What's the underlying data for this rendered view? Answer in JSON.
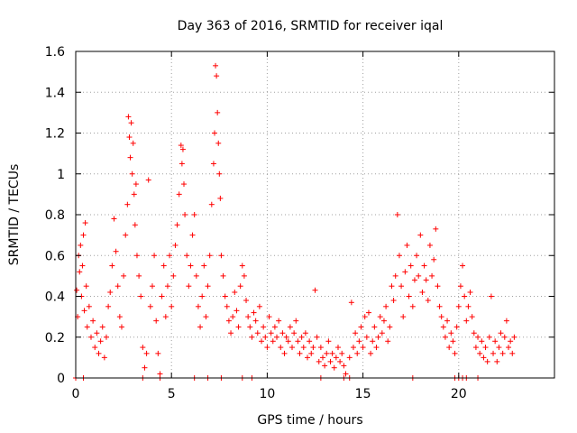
{
  "chart_data": {
    "type": "scatter",
    "title": "Day 363 of 2016, SRMTID for receiver iqal",
    "xlabel": "GPS time / hours",
    "ylabel": "SRMTID / TECUs",
    "xlim": [
      0,
      25
    ],
    "ylim": [
      0,
      1.6
    ],
    "x_ticks": [
      0,
      5,
      10,
      15,
      20
    ],
    "x_tick_labels": [
      "0",
      "5",
      "10",
      "15",
      "20"
    ],
    "y_ticks": [
      0,
      0.2,
      0.4,
      0.6,
      0.8,
      1.0,
      1.2,
      1.4,
      1.6
    ],
    "y_tick_labels": [
      "0",
      "0.2",
      "0.4",
      "0.6",
      "0.8",
      "1",
      "1.2",
      "1.4",
      "1.6"
    ],
    "grid": true,
    "marker": "+",
    "series": [
      {
        "name": "SRMTID",
        "color": "#ff0000",
        "points": [
          [
            0.05,
            0.43
          ],
          [
            0.1,
            0.3
          ],
          [
            0.15,
            0.6
          ],
          [
            0.2,
            0.52
          ],
          [
            0.25,
            0.65
          ],
          [
            0.3,
            0.4
          ],
          [
            0.35,
            0.55
          ],
          [
            0.4,
            0.7
          ],
          [
            0.45,
            0.33
          ],
          [
            0.5,
            0.76
          ],
          [
            0.55,
            0.45
          ],
          [
            0.6,
            0.25
          ],
          [
            0.7,
            0.35
          ],
          [
            0.8,
            0.2
          ],
          [
            0.9,
            0.28
          ],
          [
            1.0,
            0.15
          ],
          [
            1.1,
            0.22
          ],
          [
            1.2,
            0.12
          ],
          [
            1.3,
            0.18
          ],
          [
            1.4,
            0.25
          ],
          [
            1.5,
            0.1
          ],
          [
            1.6,
            0.2
          ],
          [
            1.7,
            0.35
          ],
          [
            1.8,
            0.42
          ],
          [
            1.9,
            0.55
          ],
          [
            2.0,
            0.78
          ],
          [
            2.1,
            0.62
          ],
          [
            2.2,
            0.45
          ],
          [
            2.3,
            0.3
          ],
          [
            2.4,
            0.25
          ],
          [
            2.5,
            0.5
          ],
          [
            2.6,
            0.7
          ],
          [
            2.7,
            0.85
          ],
          [
            2.75,
            1.28
          ],
          [
            2.8,
            1.18
          ],
          [
            2.85,
            1.08
          ],
          [
            2.9,
            1.25
          ],
          [
            2.95,
            1.0
          ],
          [
            3.0,
            1.15
          ],
          [
            3.05,
            0.9
          ],
          [
            3.1,
            0.75
          ],
          [
            3.15,
            0.95
          ],
          [
            3.2,
            0.6
          ],
          [
            3.3,
            0.5
          ],
          [
            3.4,
            0.4
          ],
          [
            3.5,
            0.15
          ],
          [
            3.6,
            0.05
          ],
          [
            3.7,
            0.12
          ],
          [
            3.8,
            0.97
          ],
          [
            3.9,
            0.35
          ],
          [
            4.0,
            0.45
          ],
          [
            4.1,
            0.6
          ],
          [
            4.2,
            0.28
          ],
          [
            4.3,
            0.12
          ],
          [
            4.4,
            0.02
          ],
          [
            4.5,
            0.4
          ],
          [
            4.6,
            0.55
          ],
          [
            4.7,
            0.3
          ],
          [
            4.8,
            0.45
          ],
          [
            4.9,
            0.6
          ],
          [
            5.0,
            0.35
          ],
          [
            5.1,
            0.5
          ],
          [
            5.2,
            0.65
          ],
          [
            5.3,
            0.75
          ],
          [
            5.4,
            0.9
          ],
          [
            5.5,
            1.14
          ],
          [
            5.55,
            1.05
          ],
          [
            5.6,
            1.12
          ],
          [
            5.65,
            0.95
          ],
          [
            5.7,
            0.8
          ],
          [
            5.8,
            0.6
          ],
          [
            5.9,
            0.45
          ],
          [
            6.0,
            0.55
          ],
          [
            6.1,
            0.7
          ],
          [
            6.2,
            0.8
          ],
          [
            6.3,
            0.5
          ],
          [
            6.4,
            0.35
          ],
          [
            6.5,
            0.25
          ],
          [
            6.6,
            0.4
          ],
          [
            6.7,
            0.55
          ],
          [
            6.8,
            0.3
          ],
          [
            6.9,
            0.45
          ],
          [
            7.0,
            0.6
          ],
          [
            7.1,
            0.85
          ],
          [
            7.2,
            1.05
          ],
          [
            7.25,
            1.2
          ],
          [
            7.3,
            1.53
          ],
          [
            7.35,
            1.48
          ],
          [
            7.4,
            1.3
          ],
          [
            7.45,
            1.15
          ],
          [
            7.5,
            1.0
          ],
          [
            7.55,
            0.88
          ],
          [
            7.6,
            0.6
          ],
          [
            7.7,
            0.5
          ],
          [
            7.8,
            0.4
          ],
          [
            7.9,
            0.35
          ],
          [
            8.0,
            0.28
          ],
          [
            8.1,
            0.22
          ],
          [
            8.2,
            0.3
          ],
          [
            8.3,
            0.42
          ],
          [
            8.4,
            0.33
          ],
          [
            8.5,
            0.25
          ],
          [
            8.6,
            0.45
          ],
          [
            8.7,
            0.55
          ],
          [
            8.8,
            0.5
          ],
          [
            8.9,
            0.38
          ],
          [
            9.0,
            0.3
          ],
          [
            9.1,
            0.25
          ],
          [
            9.2,
            0.2
          ],
          [
            9.3,
            0.32
          ],
          [
            9.4,
            0.28
          ],
          [
            9.5,
            0.22
          ],
          [
            9.6,
            0.35
          ],
          [
            9.7,
            0.18
          ],
          [
            9.8,
            0.25
          ],
          [
            9.9,
            0.2
          ],
          [
            10.0,
            0.15
          ],
          [
            10.1,
            0.3
          ],
          [
            10.2,
            0.22
          ],
          [
            10.3,
            0.18
          ],
          [
            10.4,
            0.25
          ],
          [
            10.5,
            0.2
          ],
          [
            10.6,
            0.28
          ],
          [
            10.7,
            0.15
          ],
          [
            10.8,
            0.22
          ],
          [
            10.9,
            0.12
          ],
          [
            11.0,
            0.2
          ],
          [
            11.1,
            0.18
          ],
          [
            11.2,
            0.25
          ],
          [
            11.3,
            0.15
          ],
          [
            11.4,
            0.22
          ],
          [
            11.5,
            0.28
          ],
          [
            11.6,
            0.18
          ],
          [
            11.7,
            0.12
          ],
          [
            11.8,
            0.2
          ],
          [
            11.9,
            0.15
          ],
          [
            12.0,
            0.22
          ],
          [
            12.1,
            0.1
          ],
          [
            12.2,
            0.18
          ],
          [
            12.3,
            0.12
          ],
          [
            12.4,
            0.15
          ],
          [
            12.5,
            0.43
          ],
          [
            12.6,
            0.2
          ],
          [
            12.7,
            0.08
          ],
          [
            12.8,
            0.15
          ],
          [
            12.9,
            0.1
          ],
          [
            13.0,
            0.06
          ],
          [
            13.1,
            0.12
          ],
          [
            13.2,
            0.18
          ],
          [
            13.3,
            0.08
          ],
          [
            13.4,
            0.12
          ],
          [
            13.5,
            0.05
          ],
          [
            13.6,
            0.1
          ],
          [
            13.7,
            0.15
          ],
          [
            13.8,
            0.08
          ],
          [
            13.9,
            0.12
          ],
          [
            14.0,
            0.06
          ],
          [
            14.1,
            0.02
          ],
          [
            14.3,
            0.1
          ],
          [
            14.4,
            0.37
          ],
          [
            14.5,
            0.15
          ],
          [
            14.6,
            0.22
          ],
          [
            14.7,
            0.12
          ],
          [
            14.8,
            0.18
          ],
          [
            14.9,
            0.25
          ],
          [
            15.0,
            0.15
          ],
          [
            15.1,
            0.3
          ],
          [
            15.2,
            0.2
          ],
          [
            15.3,
            0.32
          ],
          [
            15.4,
            0.12
          ],
          [
            15.5,
            0.18
          ],
          [
            15.6,
            0.25
          ],
          [
            15.7,
            0.15
          ],
          [
            15.8,
            0.2
          ],
          [
            15.9,
            0.3
          ],
          [
            16.0,
            0.22
          ],
          [
            16.1,
            0.28
          ],
          [
            16.2,
            0.35
          ],
          [
            16.3,
            0.18
          ],
          [
            16.4,
            0.25
          ],
          [
            16.5,
            0.45
          ],
          [
            16.6,
            0.38
          ],
          [
            16.7,
            0.5
          ],
          [
            16.8,
            0.8
          ],
          [
            16.9,
            0.6
          ],
          [
            17.0,
            0.45
          ],
          [
            17.1,
            0.3
          ],
          [
            17.2,
            0.52
          ],
          [
            17.3,
            0.65
          ],
          [
            17.4,
            0.4
          ],
          [
            17.5,
            0.55
          ],
          [
            17.6,
            0.35
          ],
          [
            17.7,
            0.48
          ],
          [
            17.8,
            0.6
          ],
          [
            17.9,
            0.5
          ],
          [
            18.0,
            0.7
          ],
          [
            18.1,
            0.42
          ],
          [
            18.2,
            0.55
          ],
          [
            18.3,
            0.48
          ],
          [
            18.4,
            0.38
          ],
          [
            18.5,
            0.65
          ],
          [
            18.6,
            0.5
          ],
          [
            18.7,
            0.58
          ],
          [
            18.8,
            0.73
          ],
          [
            18.9,
            0.45
          ],
          [
            19.0,
            0.35
          ],
          [
            19.1,
            0.3
          ],
          [
            19.2,
            0.25
          ],
          [
            19.3,
            0.2
          ],
          [
            19.4,
            0.28
          ],
          [
            19.5,
            0.15
          ],
          [
            19.6,
            0.22
          ],
          [
            19.7,
            0.18
          ],
          [
            19.8,
            0.12
          ],
          [
            19.9,
            0.25
          ],
          [
            20.0,
            0.35
          ],
          [
            20.1,
            0.45
          ],
          [
            20.2,
            0.55
          ],
          [
            20.3,
            0.4
          ],
          [
            20.4,
            0.28
          ],
          [
            20.5,
            0.35
          ],
          [
            20.6,
            0.42
          ],
          [
            20.7,
            0.3
          ],
          [
            20.8,
            0.22
          ],
          [
            20.9,
            0.15
          ],
          [
            21.0,
            0.2
          ],
          [
            21.1,
            0.12
          ],
          [
            21.2,
            0.18
          ],
          [
            21.3,
            0.1
          ],
          [
            21.4,
            0.15
          ],
          [
            21.5,
            0.08
          ],
          [
            21.6,
            0.2
          ],
          [
            21.7,
            0.4
          ],
          [
            21.8,
            0.12
          ],
          [
            21.9,
            0.18
          ],
          [
            22.0,
            0.08
          ],
          [
            22.1,
            0.15
          ],
          [
            22.2,
            0.22
          ],
          [
            22.3,
            0.12
          ],
          [
            22.4,
            0.2
          ],
          [
            22.5,
            0.28
          ],
          [
            22.6,
            0.15
          ],
          [
            22.7,
            0.18
          ],
          [
            22.8,
            0.12
          ],
          [
            22.9,
            0.2
          ],
          [
            0.0,
            0.0
          ],
          [
            0.4,
            0.0
          ],
          [
            3.5,
            0.0
          ],
          [
            4.4,
            0.0
          ],
          [
            6.2,
            0.0
          ],
          [
            6.9,
            0.0
          ],
          [
            7.6,
            0.0
          ],
          [
            8.7,
            0.0
          ],
          [
            9.2,
            0.0
          ],
          [
            12.8,
            0.0
          ],
          [
            14.0,
            0.0
          ],
          [
            14.3,
            0.0
          ],
          [
            17.6,
            0.0
          ],
          [
            19.8,
            0.0
          ],
          [
            20.0,
            0.0
          ],
          [
            20.2,
            0.0
          ],
          [
            20.4,
            0.0
          ],
          [
            21.0,
            0.0
          ]
        ]
      }
    ]
  }
}
